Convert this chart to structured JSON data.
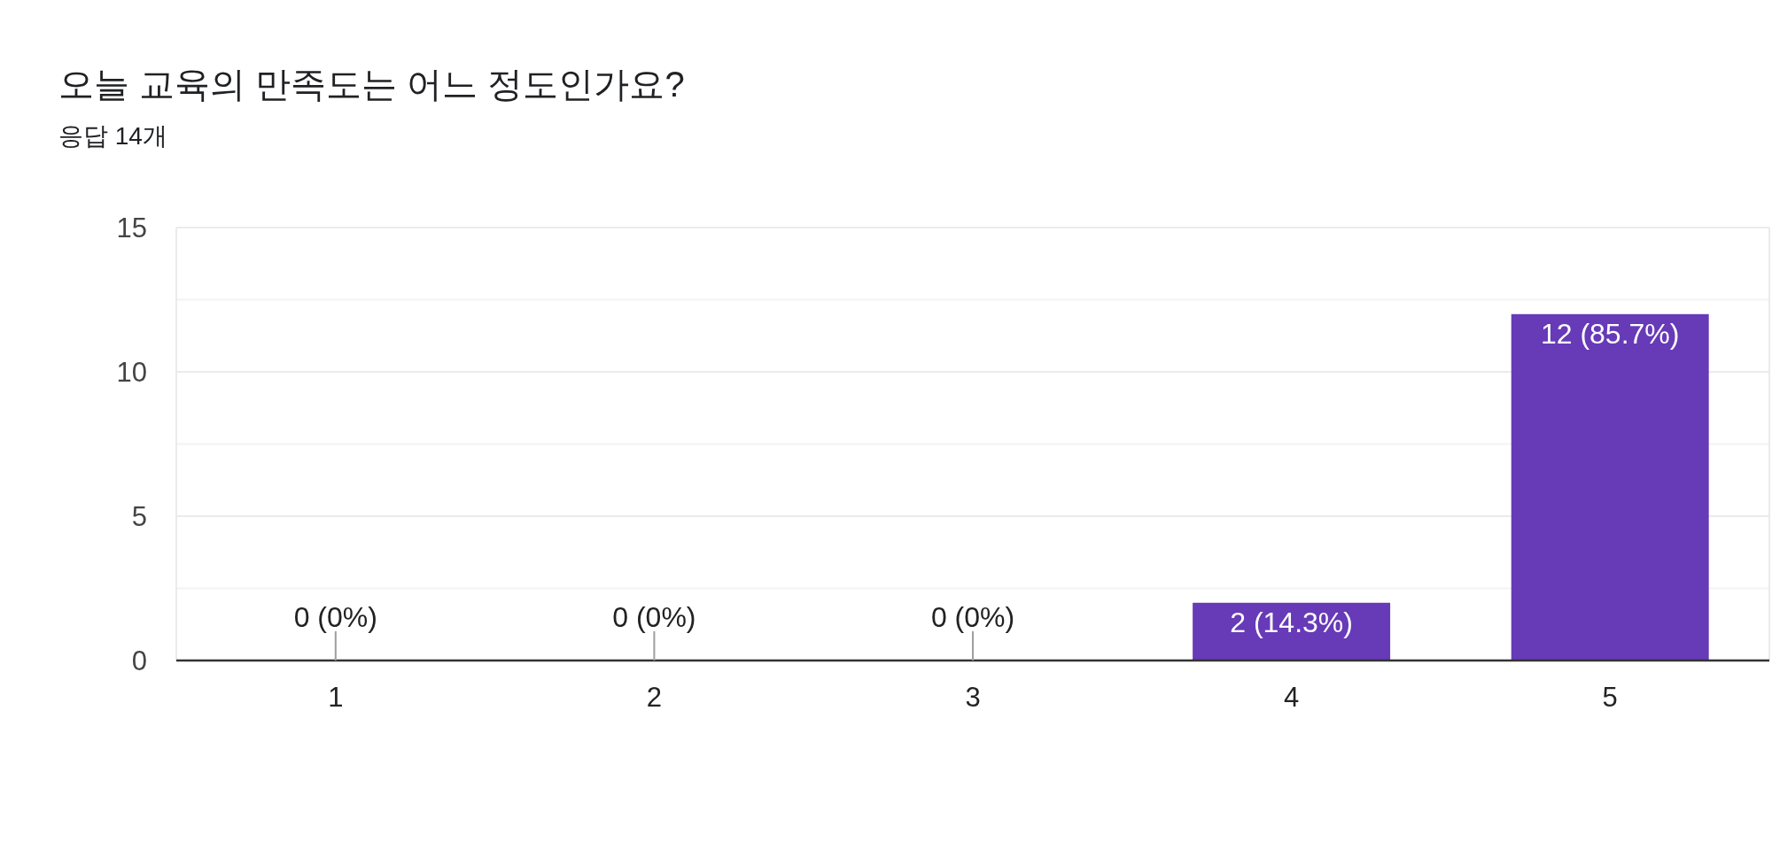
{
  "chart_data": {
    "type": "bar",
    "title": "오늘 교육의 만족도는 어느 정도인가요?",
    "subtitle": "응답 14개",
    "categories": [
      "1",
      "2",
      "3",
      "4",
      "5"
    ],
    "values": [
      0,
      0,
      0,
      2,
      12
    ],
    "color": "#673ab7",
    "value_labels": [
      "0 (0%)",
      "0 (0%)",
      "0 (0%)",
      "2 (14.3%)",
      "12 (85.7%)"
    ],
    "ylim": [
      0,
      15
    ],
    "yticks": [
      0,
      {
        "value": 2.5,
        "label": null
      },
      5,
      {
        "value": 7.5,
        "label": null
      },
      10,
      {
        "value": 12.5,
        "label": null
      },
      15
    ],
    "grid": "y"
  }
}
